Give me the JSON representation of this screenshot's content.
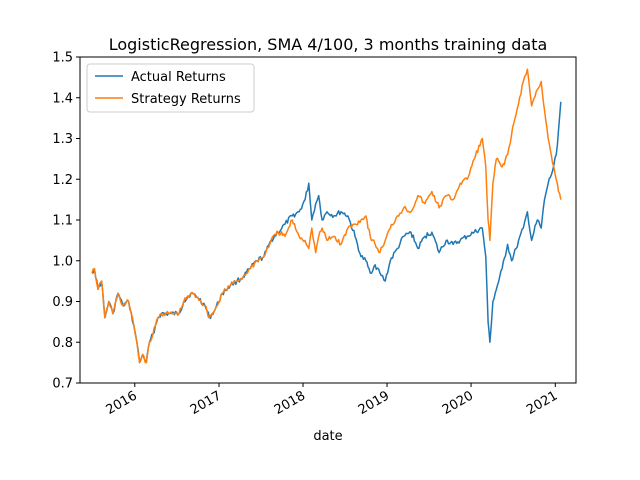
{
  "chart_data": {
    "type": "line",
    "title": "LogisticRegression, SMA 4/100, 3 months training data",
    "xlabel": "date",
    "ylabel": "",
    "xlim": [
      "2015-05-08",
      "2021-04-01"
    ],
    "ylim": [
      0.7,
      1.5
    ],
    "x_ticks": [
      "2016",
      "2017",
      "2018",
      "2019",
      "2020",
      "2021"
    ],
    "y_ticks": [
      "0.7",
      "0.8",
      "0.9",
      "1.0",
      "1.1",
      "1.2",
      "1.3",
      "1.4",
      "1.5"
    ],
    "grid": false,
    "legend": {
      "placement": "top-left",
      "entries": [
        "Actual Returns",
        "Strategy Returns"
      ]
    },
    "series": [
      {
        "name": "Actual Returns",
        "color": "#1f77b4",
        "points": [
          [
            "2015-06-29",
            0.97
          ],
          [
            "2015-07-10",
            0.98
          ],
          [
            "2015-07-25",
            0.93
          ],
          [
            "2015-08-10",
            0.95
          ],
          [
            "2015-08-24",
            0.86
          ],
          [
            "2015-09-10",
            0.9
          ],
          [
            "2015-09-28",
            0.87
          ],
          [
            "2015-10-20",
            0.92
          ],
          [
            "2015-11-10",
            0.89
          ],
          [
            "2015-12-05",
            0.9
          ],
          [
            "2015-12-28",
            0.84
          ],
          [
            "2016-01-10",
            0.8
          ],
          [
            "2016-01-22",
            0.75
          ],
          [
            "2016-02-05",
            0.77
          ],
          [
            "2016-02-20",
            0.75
          ],
          [
            "2016-03-05",
            0.8
          ],
          [
            "2016-03-20",
            0.82
          ],
          [
            "2016-04-10",
            0.86
          ],
          [
            "2016-04-25",
            0.87
          ],
          [
            "2016-06-01",
            0.87
          ],
          [
            "2016-07-11",
            0.87
          ],
          [
            "2016-08-01",
            0.9
          ],
          [
            "2016-09-01",
            0.92
          ],
          [
            "2016-10-01",
            0.91
          ],
          [
            "2016-11-01",
            0.89
          ],
          [
            "2016-11-20",
            0.86
          ],
          [
            "2016-12-15",
            0.88
          ],
          [
            "2017-01-15",
            0.92
          ],
          [
            "2017-02-20",
            0.94
          ],
          [
            "2017-03-20",
            0.95
          ],
          [
            "2017-04-15",
            0.96
          ],
          [
            "2017-05-15",
            0.98
          ],
          [
            "2017-06-15",
            1.0
          ],
          [
            "2017-07-15",
            1.01
          ],
          [
            "2017-08-15",
            1.05
          ],
          [
            "2017-09-15",
            1.07
          ],
          [
            "2017-10-15",
            1.09
          ],
          [
            "2017-11-15",
            1.11
          ],
          [
            "2017-12-15",
            1.12
          ],
          [
            "2018-01-10",
            1.15
          ],
          [
            "2018-01-26",
            1.19
          ],
          [
            "2018-02-08",
            1.1
          ],
          [
            "2018-02-25",
            1.14
          ],
          [
            "2018-03-10",
            1.16
          ],
          [
            "2018-03-25",
            1.1
          ],
          [
            "2018-04-15",
            1.12
          ],
          [
            "2018-05-15",
            1.11
          ],
          [
            "2018-06-15",
            1.12
          ],
          [
            "2018-07-15",
            1.11
          ],
          [
            "2018-08-15",
            1.06
          ],
          [
            "2018-09-10",
            1.01
          ],
          [
            "2018-10-01",
            1.0
          ],
          [
            "2018-10-20",
            0.97
          ],
          [
            "2018-11-10",
            0.99
          ],
          [
            "2018-12-01",
            0.97
          ],
          [
            "2018-12-24",
            0.95
          ],
          [
            "2019-01-15",
            1.0
          ],
          [
            "2019-02-15",
            1.03
          ],
          [
            "2019-03-15",
            1.06
          ],
          [
            "2019-04-15",
            1.07
          ],
          [
            "2019-05-15",
            1.03
          ],
          [
            "2019-06-15",
            1.06
          ],
          [
            "2019-07-15",
            1.07
          ],
          [
            "2019-08-15",
            1.02
          ],
          [
            "2019-09-15",
            1.05
          ],
          [
            "2019-10-15",
            1.04
          ],
          [
            "2019-11-15",
            1.05
          ],
          [
            "2019-12-15",
            1.06
          ],
          [
            "2020-01-15",
            1.07
          ],
          [
            "2020-02-19",
            1.08
          ],
          [
            "2020-03-05",
            1.01
          ],
          [
            "2020-03-15",
            0.85
          ],
          [
            "2020-03-23",
            0.8
          ],
          [
            "2020-04-05",
            0.9
          ],
          [
            "2020-04-20",
            0.93
          ],
          [
            "2020-05-15",
            0.98
          ],
          [
            "2020-06-08",
            1.04
          ],
          [
            "2020-06-25",
            1.0
          ],
          [
            "2020-07-15",
            1.03
          ],
          [
            "2020-08-15",
            1.08
          ],
          [
            "2020-09-02",
            1.12
          ],
          [
            "2020-09-20",
            1.05
          ],
          [
            "2020-10-15",
            1.1
          ],
          [
            "2020-11-01",
            1.08
          ],
          [
            "2020-11-15",
            1.15
          ],
          [
            "2020-12-01",
            1.19
          ],
          [
            "2020-12-20",
            1.22
          ],
          [
            "2021-01-05",
            1.26
          ],
          [
            "2021-01-15",
            1.32
          ],
          [
            "2021-01-25",
            1.39
          ]
        ]
      },
      {
        "name": "Strategy Returns",
        "color": "#ff7f0e",
        "points": [
          [
            "2015-06-29",
            0.97
          ],
          [
            "2015-07-10",
            0.98
          ],
          [
            "2015-07-25",
            0.93
          ],
          [
            "2015-08-10",
            0.95
          ],
          [
            "2015-08-24",
            0.86
          ],
          [
            "2015-09-10",
            0.9
          ],
          [
            "2015-09-28",
            0.87
          ],
          [
            "2015-10-20",
            0.92
          ],
          [
            "2015-11-10",
            0.89
          ],
          [
            "2015-12-05",
            0.9
          ],
          [
            "2015-12-28",
            0.84
          ],
          [
            "2016-01-10",
            0.8
          ],
          [
            "2016-01-22",
            0.75
          ],
          [
            "2016-02-05",
            0.77
          ],
          [
            "2016-02-20",
            0.75
          ],
          [
            "2016-03-05",
            0.8
          ],
          [
            "2016-03-20",
            0.82
          ],
          [
            "2016-04-10",
            0.86
          ],
          [
            "2016-04-25",
            0.87
          ],
          [
            "2016-06-01",
            0.87
          ],
          [
            "2016-07-11",
            0.87
          ],
          [
            "2016-08-01",
            0.9
          ],
          [
            "2016-09-01",
            0.92
          ],
          [
            "2016-10-01",
            0.91
          ],
          [
            "2016-11-01",
            0.89
          ],
          [
            "2016-11-20",
            0.86
          ],
          [
            "2016-12-15",
            0.88
          ],
          [
            "2017-01-15",
            0.92
          ],
          [
            "2017-02-20",
            0.94
          ],
          [
            "2017-03-20",
            0.95
          ],
          [
            "2017-04-15",
            0.96
          ],
          [
            "2017-05-15",
            0.98
          ],
          [
            "2017-06-15",
            1.0
          ],
          [
            "2017-07-15",
            1.01
          ],
          [
            "2017-08-15",
            1.05
          ],
          [
            "2017-09-15",
            1.07
          ],
          [
            "2017-10-15",
            1.06
          ],
          [
            "2017-11-15",
            1.1
          ],
          [
            "2017-12-15",
            1.06
          ],
          [
            "2018-01-10",
            1.05
          ],
          [
            "2018-01-26",
            1.03
          ],
          [
            "2018-02-08",
            1.08
          ],
          [
            "2018-02-25",
            1.02
          ],
          [
            "2018-03-10",
            1.06
          ],
          [
            "2018-03-25",
            1.08
          ],
          [
            "2018-04-15",
            1.05
          ],
          [
            "2018-05-15",
            1.06
          ],
          [
            "2018-06-15",
            1.04
          ],
          [
            "2018-07-15",
            1.08
          ],
          [
            "2018-08-15",
            1.09
          ],
          [
            "2018-09-10",
            1.1
          ],
          [
            "2018-10-01",
            1.11
          ],
          [
            "2018-10-20",
            1.06
          ],
          [
            "2018-11-10",
            1.04
          ],
          [
            "2018-12-01",
            1.02
          ],
          [
            "2018-12-24",
            1.05
          ],
          [
            "2019-01-15",
            1.08
          ],
          [
            "2019-02-15",
            1.11
          ],
          [
            "2019-03-15",
            1.13
          ],
          [
            "2019-04-15",
            1.12
          ],
          [
            "2019-05-15",
            1.16
          ],
          [
            "2019-06-15",
            1.14
          ],
          [
            "2019-07-15",
            1.17
          ],
          [
            "2019-08-15",
            1.13
          ],
          [
            "2019-09-15",
            1.16
          ],
          [
            "2019-10-15",
            1.15
          ],
          [
            "2019-11-15",
            1.19
          ],
          [
            "2019-12-15",
            1.2
          ],
          [
            "2020-01-15",
            1.25
          ],
          [
            "2020-02-19",
            1.3
          ],
          [
            "2020-03-05",
            1.23
          ],
          [
            "2020-03-15",
            1.1
          ],
          [
            "2020-03-23",
            1.05
          ],
          [
            "2020-04-05",
            1.19
          ],
          [
            "2020-04-20",
            1.25
          ],
          [
            "2020-05-15",
            1.23
          ],
          [
            "2020-06-08",
            1.26
          ],
          [
            "2020-06-25",
            1.31
          ],
          [
            "2020-07-15",
            1.36
          ],
          [
            "2020-08-15",
            1.44
          ],
          [
            "2020-09-02",
            1.47
          ],
          [
            "2020-09-20",
            1.38
          ],
          [
            "2020-10-15",
            1.42
          ],
          [
            "2020-11-01",
            1.44
          ],
          [
            "2020-11-15",
            1.37
          ],
          [
            "2020-12-01",
            1.3
          ],
          [
            "2020-12-20",
            1.24
          ],
          [
            "2021-01-05",
            1.2
          ],
          [
            "2021-01-15",
            1.17
          ],
          [
            "2021-01-25",
            1.15
          ]
        ]
      }
    ]
  }
}
